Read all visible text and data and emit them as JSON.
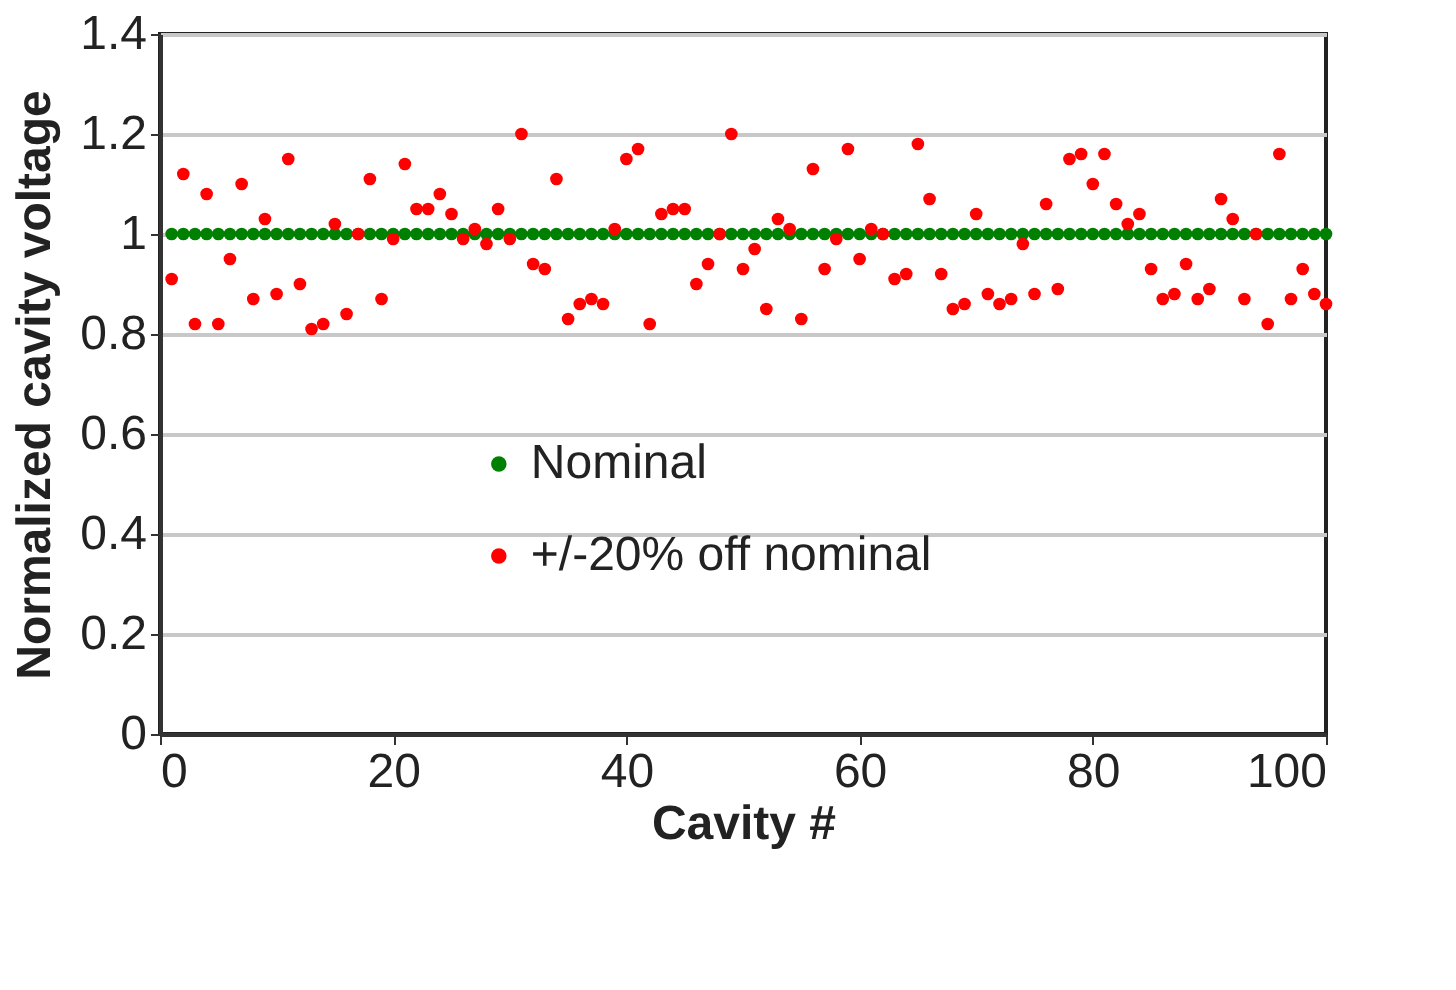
{
  "chart_data": {
    "type": "scatter",
    "xlabel": "Cavity #",
    "ylabel": "Normalized cavity voltage",
    "x": [
      1,
      2,
      3,
      4,
      5,
      6,
      7,
      8,
      9,
      10,
      11,
      12,
      13,
      14,
      15,
      16,
      17,
      18,
      19,
      20,
      21,
      22,
      23,
      24,
      25,
      26,
      27,
      28,
      29,
      30,
      31,
      32,
      33,
      34,
      35,
      36,
      37,
      38,
      39,
      40,
      41,
      42,
      43,
      44,
      45,
      46,
      47,
      48,
      49,
      50,
      51,
      52,
      53,
      54,
      55,
      56,
      57,
      58,
      59,
      60,
      61,
      62,
      63,
      64,
      65,
      66,
      67,
      68,
      69,
      70,
      71,
      72,
      73,
      74,
      75,
      76,
      77,
      78,
      79,
      80,
      81,
      82,
      83,
      84,
      85,
      86,
      87,
      88,
      89,
      90,
      91,
      92,
      93,
      94,
      95,
      96,
      97,
      98,
      99,
      100
    ],
    "series": [
      {
        "name": "Nominal",
        "color": "#008000",
        "values": [
          1,
          1,
          1,
          1,
          1,
          1,
          1,
          1,
          1,
          1,
          1,
          1,
          1,
          1,
          1,
          1,
          1,
          1,
          1,
          1,
          1,
          1,
          1,
          1,
          1,
          1,
          1,
          1,
          1,
          1,
          1,
          1,
          1,
          1,
          1,
          1,
          1,
          1,
          1,
          1,
          1,
          1,
          1,
          1,
          1,
          1,
          1,
          1,
          1,
          1,
          1,
          1,
          1,
          1,
          1,
          1,
          1,
          1,
          1,
          1,
          1,
          1,
          1,
          1,
          1,
          1,
          1,
          1,
          1,
          1,
          1,
          1,
          1,
          1,
          1,
          1,
          1,
          1,
          1,
          1,
          1,
          1,
          1,
          1,
          1,
          1,
          1,
          1,
          1,
          1,
          1,
          1,
          1,
          1,
          1,
          1,
          1,
          1,
          1,
          1
        ]
      },
      {
        "name": "+/-20% off nominal",
        "color": "#ff0000",
        "values": [
          0.91,
          1.12,
          0.82,
          1.08,
          0.82,
          0.95,
          1.1,
          0.87,
          1.03,
          0.88,
          1.15,
          0.9,
          0.81,
          0.82,
          1.02,
          0.84,
          1.0,
          1.11,
          0.87,
          0.99,
          1.14,
          1.05,
          1.05,
          1.08,
          1.04,
          0.99,
          1.01,
          0.98,
          1.05,
          0.99,
          1.2,
          0.94,
          0.93,
          1.11,
          0.83,
          0.86,
          0.87,
          0.86,
          1.01,
          1.15,
          1.17,
          0.82,
          1.04,
          1.05,
          1.05,
          0.9,
          0.94,
          1.0,
          1.2,
          0.93,
          0.97,
          0.85,
          1.03,
          1.01,
          0.83,
          1.13,
          0.93,
          0.99,
          1.17,
          0.95,
          1.01,
          1.0,
          0.91,
          0.92,
          1.18,
          1.07,
          0.92,
          0.85,
          0.86,
          1.04,
          0.88,
          0.86,
          0.87,
          0.98,
          0.88,
          1.06,
          0.89,
          1.15,
          1.16,
          1.1,
          1.16,
          1.06,
          1.02,
          1.04,
          0.93,
          0.87,
          0.88,
          0.94,
          0.87,
          0.89,
          1.07,
          1.03,
          0.87,
          1.0,
          0.82,
          1.16,
          0.87,
          0.93,
          0.88,
          0.86
        ]
      }
    ],
    "xlim": [
      0,
      100
    ],
    "xticks": [
      0,
      20,
      40,
      60,
      80,
      100
    ],
    "ylim": [
      0,
      1.4
    ],
    "yticks": [
      0,
      0.2,
      0.4,
      0.6,
      0.8,
      1,
      1.2,
      1.4
    ],
    "grid": "y",
    "legend": "bottom",
    "marker": "circle"
  }
}
